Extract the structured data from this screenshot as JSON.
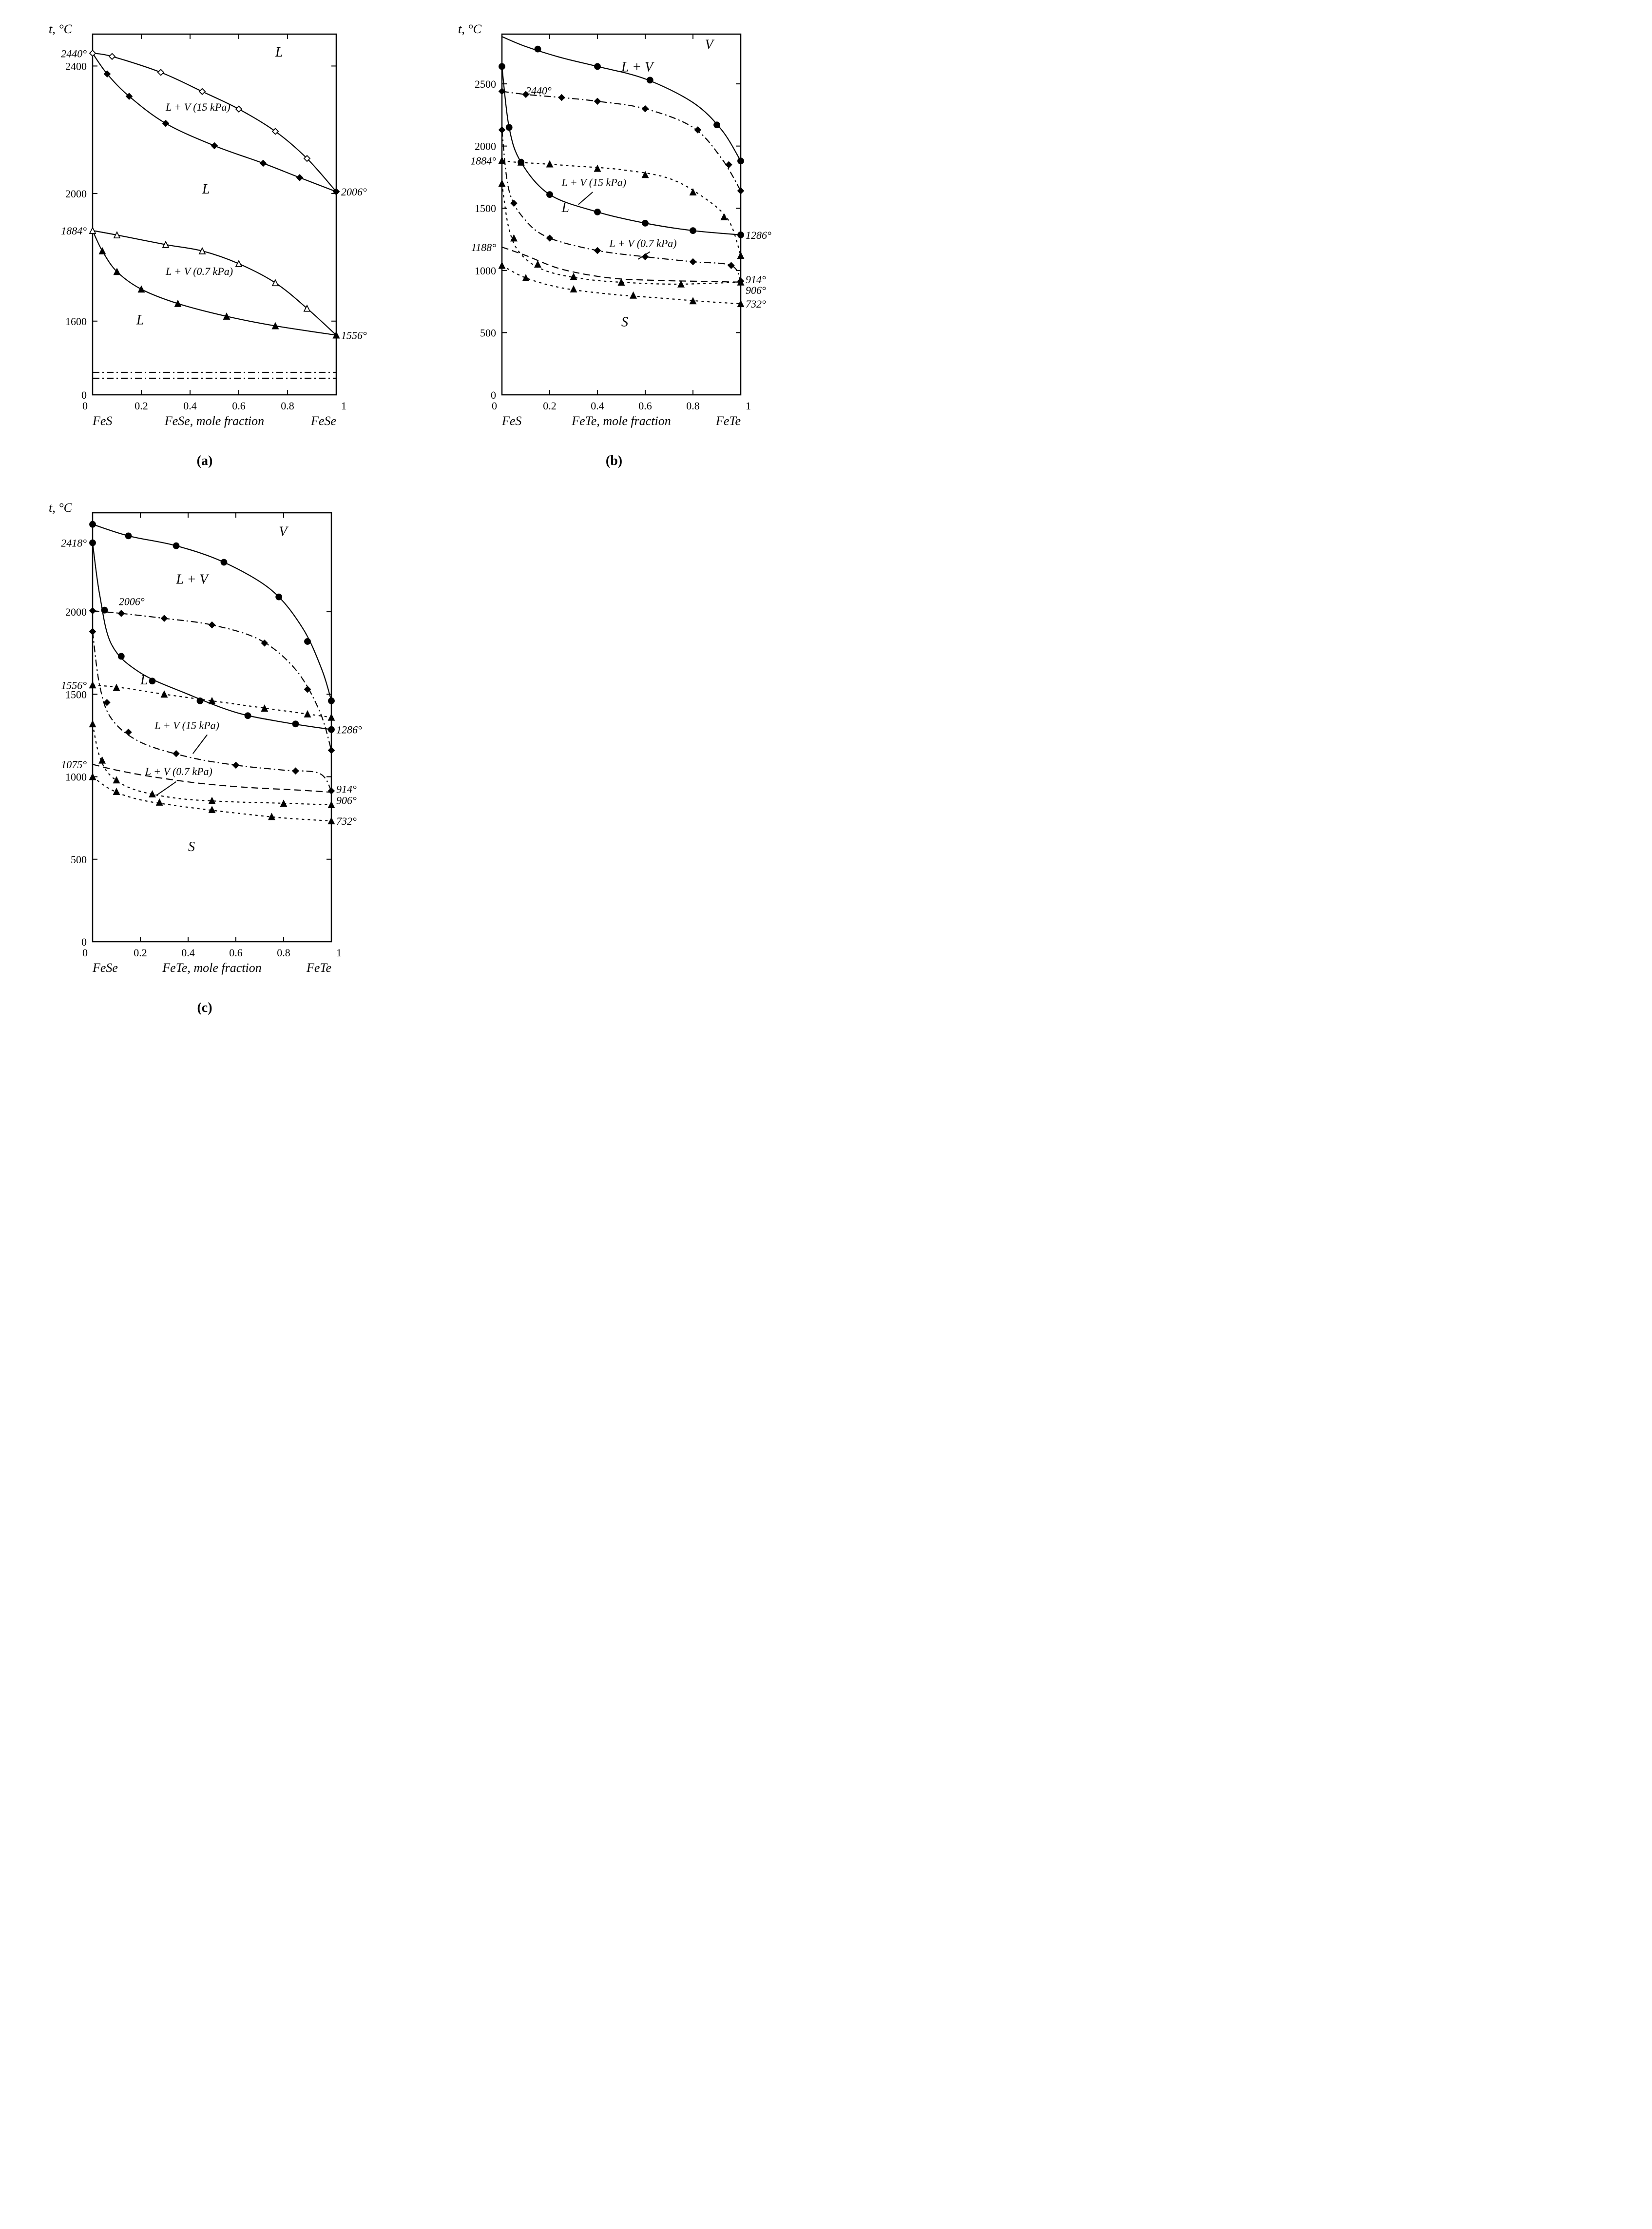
{
  "figure": {
    "panels": [
      "(a)",
      "(b)",
      "(c)"
    ],
    "colors": {
      "line": "#000000",
      "bg": "#ffffff"
    }
  },
  "panel_a": {
    "type": "phase-diagram",
    "y_title": "t, °C",
    "x_title": "FeSe, mole fraction",
    "x_left": "FeS",
    "x_right": "FeSe",
    "x_ticks": [
      0,
      0.2,
      0.4,
      0.6,
      0.8,
      1
    ],
    "y_ticks": [
      0,
      1600,
      2000,
      2400
    ],
    "y_range": [
      0,
      2500
    ],
    "left_temps": {
      "t1": "2440°",
      "t2": "1884°"
    },
    "right_temps": {
      "t1": "2006°",
      "t2": "1556°"
    },
    "region_labels": {
      "upper_L": "L",
      "mid_L": "L",
      "lower_L": "L",
      "LV15": "L + V (15 kPa)",
      "LV07": "L + V (0.7 kPa)"
    },
    "curves": {
      "upper_top": [
        [
          0,
          2440
        ],
        [
          0.08,
          2430
        ],
        [
          0.28,
          2380
        ],
        [
          0.45,
          2320
        ],
        [
          0.6,
          2265
        ],
        [
          0.75,
          2195
        ],
        [
          0.88,
          2110
        ],
        [
          1,
          2006
        ]
      ],
      "upper_bot": [
        [
          0,
          2440
        ],
        [
          0.06,
          2375
        ],
        [
          0.15,
          2305
        ],
        [
          0.3,
          2220
        ],
        [
          0.5,
          2150
        ],
        [
          0.7,
          2095
        ],
        [
          0.85,
          2050
        ],
        [
          1,
          2006
        ]
      ],
      "lower_top": [
        [
          0,
          1884
        ],
        [
          0.1,
          1870
        ],
        [
          0.3,
          1840
        ],
        [
          0.45,
          1820
        ],
        [
          0.6,
          1780
        ],
        [
          0.75,
          1720
        ],
        [
          0.88,
          1640
        ],
        [
          1,
          1556
        ]
      ],
      "lower_bot": [
        [
          0,
          1884
        ],
        [
          0.04,
          1820
        ],
        [
          0.1,
          1755
        ],
        [
          0.2,
          1700
        ],
        [
          0.35,
          1655
        ],
        [
          0.55,
          1615
        ],
        [
          0.75,
          1585
        ],
        [
          1,
          1556
        ]
      ]
    },
    "markers": {
      "open_diamond": [
        [
          0,
          2440
        ],
        [
          0.08,
          2430
        ],
        [
          0.28,
          2380
        ],
        [
          0.45,
          2320
        ],
        [
          0.6,
          2265
        ],
        [
          0.75,
          2195
        ],
        [
          0.88,
          2110
        ],
        [
          1,
          2006
        ]
      ],
      "solid_diamond": [
        [
          0.06,
          2375
        ],
        [
          0.15,
          2305
        ],
        [
          0.3,
          2220
        ],
        [
          0.5,
          2150
        ],
        [
          0.7,
          2095
        ],
        [
          0.85,
          2050
        ],
        [
          1,
          2006
        ]
      ],
      "open_tri": [
        [
          0,
          1884
        ],
        [
          0.1,
          1870
        ],
        [
          0.3,
          1840
        ],
        [
          0.45,
          1820
        ],
        [
          0.6,
          1780
        ],
        [
          0.75,
          1720
        ],
        [
          0.88,
          1640
        ],
        [
          1,
          1556
        ]
      ],
      "solid_tri": [
        [
          0.04,
          1820
        ],
        [
          0.1,
          1755
        ],
        [
          0.2,
          1700
        ],
        [
          0.35,
          1655
        ],
        [
          0.55,
          1615
        ],
        [
          0.75,
          1585
        ],
        [
          1,
          1556
        ]
      ]
    },
    "break_y": 1430
  },
  "panel_b": {
    "type": "phase-diagram",
    "y_title": "t, °C",
    "x_title": "FeTe, mole fraction",
    "x_left": "FeS",
    "x_right": "FeTe",
    "x_ticks": [
      0,
      0.2,
      0.4,
      0.6,
      0.8,
      1
    ],
    "y_ticks": [
      0,
      500,
      1000,
      1500,
      2000,
      2500
    ],
    "y_range": [
      0,
      2900
    ],
    "left_temps": {
      "t2440": "2440°",
      "t1884": "1884°",
      "t1188": "1188°"
    },
    "right_temps": {
      "t1286": "1286°",
      "t914": "914°",
      "t906": "906°",
      "t732": "732°"
    },
    "region_labels": {
      "V": "V",
      "LV_top": "L + V",
      "L": "L",
      "LV15": "L + V (15 kPa)",
      "LV07": "L + V (0.7 kPa)",
      "S": "S"
    },
    "curves": {
      "c1": [
        [
          0,
          2880
        ],
        [
          0.1,
          2800
        ],
        [
          0.25,
          2710
        ],
        [
          0.4,
          2640
        ],
        [
          0.6,
          2540
        ],
        [
          0.8,
          2350
        ],
        [
          0.92,
          2130
        ],
        [
          1,
          1880
        ]
      ],
      "c2": [
        [
          0,
          2640
        ],
        [
          0.03,
          2150
        ],
        [
          0.08,
          1870
        ],
        [
          0.2,
          1610
        ],
        [
          0.4,
          1470
        ],
        [
          0.6,
          1380
        ],
        [
          0.8,
          1320
        ],
        [
          1,
          1286
        ]
      ],
      "c3": [
        [
          0,
          2440
        ],
        [
          0.1,
          2415
        ],
        [
          0.25,
          2390
        ],
        [
          0.4,
          2360
        ],
        [
          0.6,
          2300
        ],
        [
          0.8,
          2150
        ],
        [
          0.92,
          1900
        ],
        [
          1,
          1640
        ]
      ],
      "c4": [
        [
          0,
          2130
        ],
        [
          0.03,
          1640
        ],
        [
          0.1,
          1400
        ],
        [
          0.2,
          1260
        ],
        [
          0.4,
          1160
        ],
        [
          0.6,
          1110
        ],
        [
          0.8,
          1070
        ],
        [
          0.96,
          1040
        ],
        [
          1,
          914
        ]
      ],
      "c5": [
        [
          0,
          1884
        ],
        [
          0.06,
          1870
        ],
        [
          0.15,
          1860
        ],
        [
          0.3,
          1840
        ],
        [
          0.5,
          1810
        ],
        [
          0.7,
          1740
        ],
        [
          0.85,
          1580
        ],
        [
          0.95,
          1400
        ],
        [
          1,
          1120
        ]
      ],
      "c6": [
        [
          0,
          1700
        ],
        [
          0.03,
          1330
        ],
        [
          0.08,
          1130
        ],
        [
          0.18,
          1000
        ],
        [
          0.35,
          930
        ],
        [
          0.55,
          900
        ],
        [
          0.75,
          890
        ],
        [
          1,
          906
        ]
      ],
      "c7": [
        [
          0,
          1188
        ],
        [
          0.1,
          1120
        ],
        [
          0.25,
          1010
        ],
        [
          0.45,
          940
        ],
        [
          0.65,
          920
        ],
        [
          0.85,
          912
        ],
        [
          1,
          906
        ]
      ],
      "c8": [
        [
          0,
          1040
        ],
        [
          0.1,
          940
        ],
        [
          0.25,
          860
        ],
        [
          0.45,
          810
        ],
        [
          0.65,
          780
        ],
        [
          0.85,
          750
        ],
        [
          1,
          732
        ]
      ]
    },
    "line_styles": {
      "c1": "solid",
      "c2": "solid",
      "c3": "dashdot",
      "c4": "dashdot",
      "c5": "dotted",
      "c6": "dotted",
      "c7": "dashed",
      "c8": "dotted"
    },
    "markers": {
      "circles": [
        [
          0.15,
          2780
        ],
        [
          0.4,
          2640
        ],
        [
          0.62,
          2530
        ],
        [
          0.9,
          2170
        ],
        [
          1,
          1880
        ],
        [
          0,
          2640
        ],
        [
          0.03,
          2150
        ],
        [
          0.08,
          1870
        ],
        [
          0.2,
          1610
        ],
        [
          0.4,
          1470
        ],
        [
          0.6,
          1380
        ],
        [
          0.8,
          1320
        ],
        [
          1,
          1286
        ]
      ],
      "diamonds": [
        [
          0,
          2440
        ],
        [
          0.1,
          2415
        ],
        [
          0.25,
          2390
        ],
        [
          0.4,
          2360
        ],
        [
          0.6,
          2300
        ],
        [
          0.82,
          2130
        ],
        [
          0.95,
          1850
        ],
        [
          1,
          1640
        ],
        [
          0,
          2130
        ],
        [
          0.05,
          1540
        ],
        [
          0.2,
          1260
        ],
        [
          0.4,
          1160
        ],
        [
          0.6,
          1110
        ],
        [
          0.8,
          1070
        ],
        [
          0.96,
          1040
        ],
        [
          1,
          914
        ]
      ],
      "triangles": [
        [
          0,
          1884
        ],
        [
          0.08,
          1870
        ],
        [
          0.2,
          1855
        ],
        [
          0.4,
          1820
        ],
        [
          0.6,
          1770
        ],
        [
          0.8,
          1630
        ],
        [
          0.93,
          1430
        ],
        [
          1,
          1120
        ],
        [
          0,
          1700
        ],
        [
          0.05,
          1260
        ],
        [
          0.15,
          1050
        ],
        [
          0.3,
          950
        ],
        [
          0.5,
          905
        ],
        [
          0.75,
          890
        ],
        [
          1,
          906
        ],
        [
          0,
          1040
        ],
        [
          0.1,
          940
        ],
        [
          0.3,
          850
        ],
        [
          0.55,
          800
        ],
        [
          0.8,
          755
        ],
        [
          1,
          732
        ]
      ]
    }
  },
  "panel_c": {
    "type": "phase-diagram",
    "y_title": "t, °C",
    "x_title": "FeTe, mole fraction",
    "x_left": "FeSe",
    "x_right": "FeTe",
    "x_ticks": [
      0,
      0.2,
      0.4,
      0.6,
      0.8,
      1
    ],
    "y_ticks": [
      0,
      500,
      1000,
      1500,
      2000
    ],
    "y_range": [
      0,
      2600
    ],
    "left_temps": {
      "t2418": "2418°",
      "t2006": "2006°",
      "t1556": "1556°",
      "t1075": "1075°"
    },
    "right_temps": {
      "t1286": "1286°",
      "t914": "914°",
      "t906": "906°",
      "t732": "732°"
    },
    "region_labels": {
      "V": "V",
      "LV_top": "L + V",
      "L": "L",
      "LV15": "L + V (15 kPa)",
      "LV07": "L + V (0.7 kPa)",
      "S": "S"
    },
    "curves": {
      "c1": [
        [
          0,
          2530
        ],
        [
          0.15,
          2460
        ],
        [
          0.35,
          2400
        ],
        [
          0.55,
          2300
        ],
        [
          0.75,
          2130
        ],
        [
          0.88,
          1900
        ],
        [
          0.96,
          1650
        ],
        [
          1,
          1460
        ]
      ],
      "c2": [
        [
          0,
          2418
        ],
        [
          0.03,
          2100
        ],
        [
          0.08,
          1800
        ],
        [
          0.2,
          1630
        ],
        [
          0.4,
          1500
        ],
        [
          0.6,
          1390
        ],
        [
          0.8,
          1330
        ],
        [
          1,
          1286
        ]
      ],
      "c3": [
        [
          0,
          2006
        ],
        [
          0.12,
          1990
        ],
        [
          0.3,
          1960
        ],
        [
          0.5,
          1920
        ],
        [
          0.7,
          1830
        ],
        [
          0.85,
          1650
        ],
        [
          0.95,
          1400
        ],
        [
          1,
          1160
        ]
      ],
      "c4": [
        [
          0,
          1880
        ],
        [
          0.03,
          1550
        ],
        [
          0.08,
          1350
        ],
        [
          0.2,
          1210
        ],
        [
          0.4,
          1120
        ],
        [
          0.6,
          1070
        ],
        [
          0.8,
          1040
        ],
        [
          0.95,
          1020
        ],
        [
          1,
          914
        ]
      ],
      "c5": [
        [
          0,
          1556
        ],
        [
          0.12,
          1540
        ],
        [
          0.3,
          1500
        ],
        [
          0.5,
          1460
        ],
        [
          0.7,
          1420
        ],
        [
          0.85,
          1390
        ],
        [
          1,
          1360
        ]
      ],
      "c6": [
        [
          0,
          1320
        ],
        [
          0.03,
          1120
        ],
        [
          0.08,
          1000
        ],
        [
          0.18,
          920
        ],
        [
          0.35,
          870
        ],
        [
          0.55,
          850
        ],
        [
          0.78,
          840
        ],
        [
          1,
          830
        ]
      ],
      "c7": [
        [
          0,
          1075
        ],
        [
          0.1,
          1040
        ],
        [
          0.25,
          1000
        ],
        [
          0.45,
          960
        ],
        [
          0.65,
          935
        ],
        [
          0.85,
          920
        ],
        [
          1,
          906
        ]
      ],
      "c8": [
        [
          0,
          1000
        ],
        [
          0.08,
          920
        ],
        [
          0.2,
          860
        ],
        [
          0.4,
          815
        ],
        [
          0.6,
          780
        ],
        [
          0.8,
          750
        ],
        [
          1,
          732
        ]
      ]
    },
    "line_styles": {
      "c1": "solid",
      "c2": "solid",
      "c3": "dashdot",
      "c4": "dashdot",
      "c5": "dotted",
      "c6": "dotted",
      "c7": "dashed",
      "c8": "dotted"
    },
    "markers": {
      "circles": [
        [
          0,
          2530
        ],
        [
          0.15,
          2460
        ],
        [
          0.35,
          2400
        ],
        [
          0.55,
          2300
        ],
        [
          0.78,
          2090
        ],
        [
          0.9,
          1820
        ],
        [
          1,
          1460
        ],
        [
          0,
          2418
        ],
        [
          0.05,
          2010
        ],
        [
          0.12,
          1730
        ],
        [
          0.25,
          1580
        ],
        [
          0.45,
          1460
        ],
        [
          0.65,
          1370
        ],
        [
          0.85,
          1320
        ],
        [
          1,
          1286
        ]
      ],
      "diamonds": [
        [
          0,
          2006
        ],
        [
          0.12,
          1990
        ],
        [
          0.3,
          1960
        ],
        [
          0.5,
          1920
        ],
        [
          0.72,
          1810
        ],
        [
          0.9,
          1530
        ],
        [
          1,
          1160
        ],
        [
          0,
          1880
        ],
        [
          0.06,
          1450
        ],
        [
          0.15,
          1270
        ],
        [
          0.35,
          1140
        ],
        [
          0.6,
          1070
        ],
        [
          0.85,
          1035
        ],
        [
          1,
          914
        ]
      ],
      "triangles": [
        [
          0,
          1556
        ],
        [
          0.1,
          1540
        ],
        [
          0.3,
          1500
        ],
        [
          0.5,
          1460
        ],
        [
          0.72,
          1415
        ],
        [
          0.9,
          1380
        ],
        [
          1,
          1360
        ],
        [
          0,
          1320
        ],
        [
          0.04,
          1100
        ],
        [
          0.1,
          980
        ],
        [
          0.25,
          895
        ],
        [
          0.5,
          855
        ],
        [
          0.8,
          838
        ],
        [
          1,
          830
        ],
        [
          0,
          1000
        ],
        [
          0.1,
          910
        ],
        [
          0.28,
          845
        ],
        [
          0.5,
          800
        ],
        [
          0.75,
          758
        ],
        [
          1,
          732
        ]
      ]
    }
  }
}
